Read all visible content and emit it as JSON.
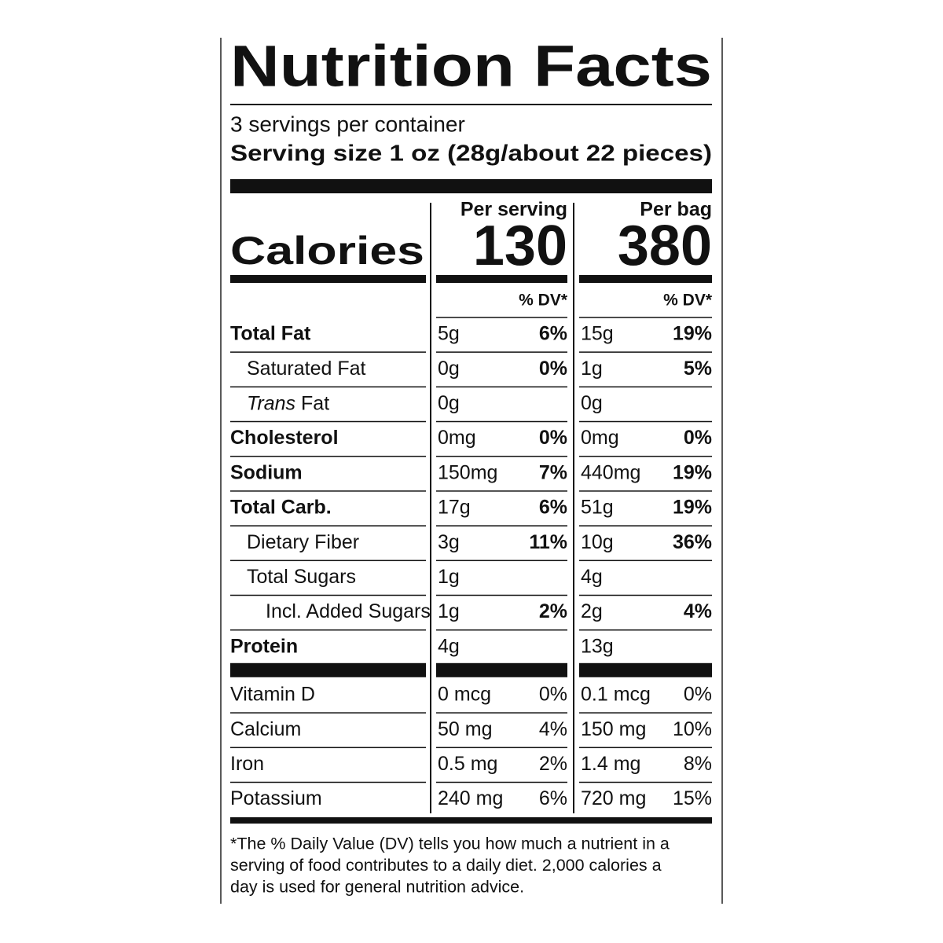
{
  "header": {
    "title": "Nutrition Facts",
    "servings": "3 servings per container",
    "serving_size": "Serving size 1 oz (28g/about 22 pieces)"
  },
  "calories_label": "Calories",
  "columns": [
    {
      "heading": "Per serving",
      "calories": 130,
      "dv_heading": "% DV*"
    },
    {
      "heading": "Per bag",
      "calories": 380,
      "dv_heading": "% DV*"
    }
  ],
  "nutrients": [
    {
      "name": "Total Fat",
      "bold": true,
      "indent": 0,
      "values": [
        [
          "5g",
          "6%"
        ],
        [
          "15g",
          "19%"
        ]
      ]
    },
    {
      "name": "Saturated Fat",
      "bold": false,
      "indent": 1,
      "values": [
        [
          "0g",
          "0%"
        ],
        [
          "1g",
          "5%"
        ]
      ]
    },
    {
      "name_italic": "Trans",
      "name": "Fat",
      "bold": false,
      "indent": 1,
      "values": [
        [
          "0g"
        ],
        [
          "0g"
        ]
      ]
    },
    {
      "name": "Cholesterol",
      "bold": true,
      "indent": 0,
      "values": [
        [
          "0mg",
          "0%"
        ],
        [
          "0mg",
          "0%"
        ]
      ]
    },
    {
      "name": "Sodium",
      "bold": true,
      "indent": 0,
      "values": [
        [
          "150mg",
          "7%"
        ],
        [
          "440mg",
          "19%"
        ]
      ]
    },
    {
      "name": "Total Carb.",
      "bold": true,
      "indent": 0,
      "values": [
        [
          "17g",
          "6%"
        ],
        [
          "51g",
          "19%"
        ]
      ]
    },
    {
      "name": "Dietary Fiber",
      "bold": false,
      "indent": 1,
      "values": [
        [
          "3g",
          "11%"
        ],
        [
          "10g",
          "36%"
        ]
      ]
    },
    {
      "name": "Total Sugars",
      "bold": false,
      "indent": 1,
      "values": [
        [
          "1g"
        ],
        [
          "4g"
        ]
      ]
    },
    {
      "name": "Incl. Added Sugars",
      "bold": false,
      "indent": 2,
      "values": [
        [
          "1g",
          "2%"
        ],
        [
          "2g",
          "4%"
        ]
      ]
    },
    {
      "name": "Protein",
      "bold": true,
      "indent": 0,
      "values": [
        [
          "4g"
        ],
        [
          "13g"
        ]
      ]
    }
  ],
  "vitamins": [
    {
      "name": "Vitamin D",
      "values": [
        [
          "0 mcg",
          "0%"
        ],
        [
          "0.1 mcg",
          "0%"
        ]
      ]
    },
    {
      "name": "Calcium",
      "values": [
        [
          "50 mg",
          "4%"
        ],
        [
          "150 mg",
          "10%"
        ]
      ]
    },
    {
      "name": "Iron",
      "values": [
        [
          "0.5 mg",
          "2%"
        ],
        [
          "1.4 mg",
          "8%"
        ]
      ]
    },
    {
      "name": "Potassium",
      "values": [
        [
          "240 mg",
          "6%"
        ],
        [
          "720 mg",
          "15%"
        ]
      ]
    }
  ],
  "footnote": [
    "*The % Daily Value (DV) tells you how much a nutrient in a",
    "serving of food contributes to a daily diet. 2,000 calories a",
    "day is used for general nutrition advice."
  ]
}
